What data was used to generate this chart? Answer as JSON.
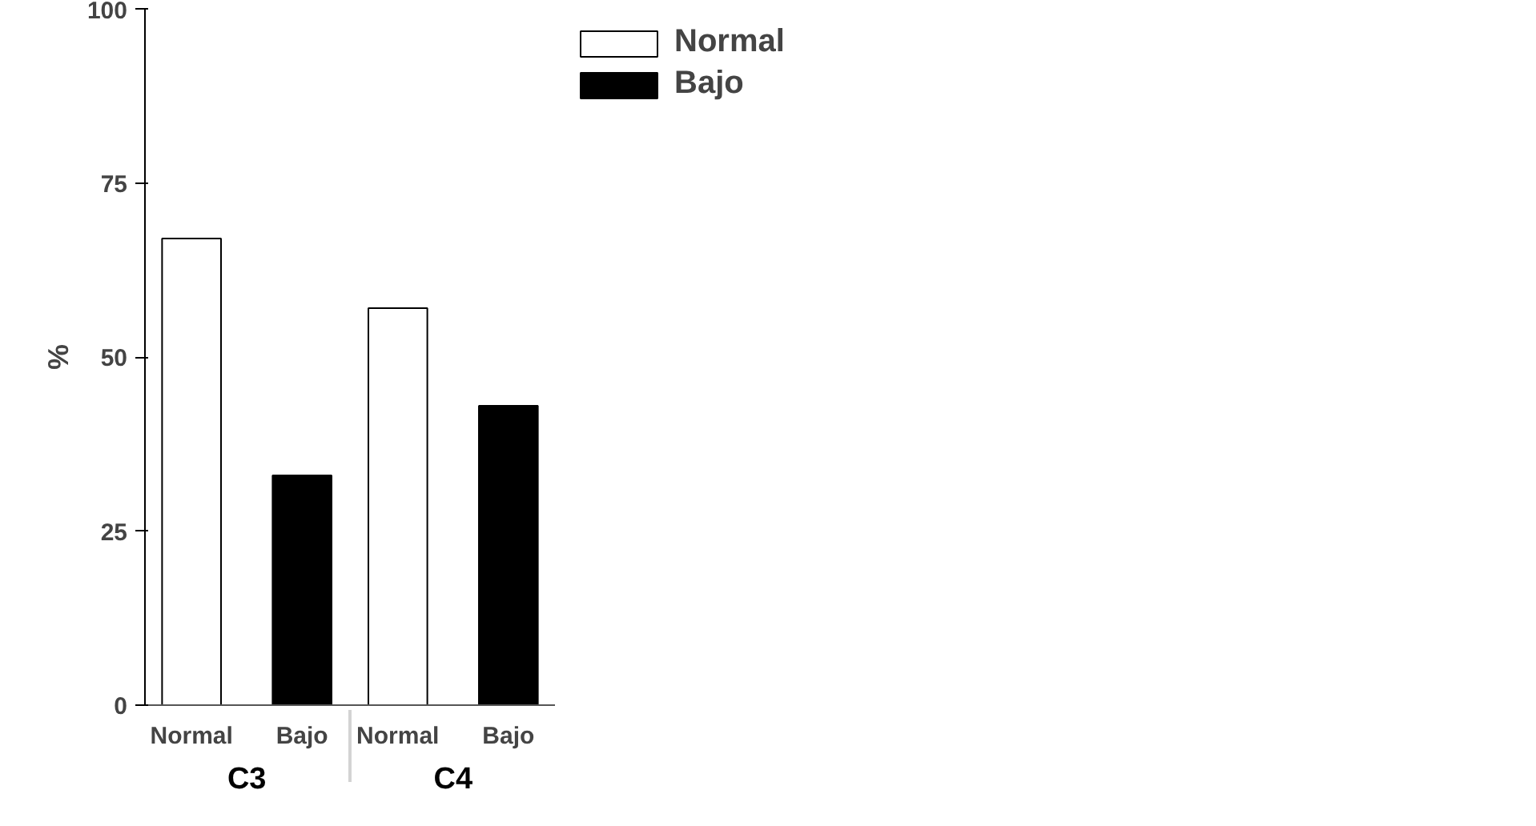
{
  "chart_data": {
    "type": "bar",
    "ylabel": "%",
    "categories": [
      "C3",
      "C4"
    ],
    "series": [
      {
        "name": "Normal",
        "color": "#ffffff",
        "values": [
          67,
          57
        ]
      },
      {
        "name": "Bajo",
        "color": "#000000",
        "values": [
          33,
          43
        ]
      }
    ],
    "ylim": [
      0,
      100
    ],
    "yticks": [
      0,
      25,
      50,
      75,
      100
    ],
    "grid": false,
    "legend": "top right"
  }
}
